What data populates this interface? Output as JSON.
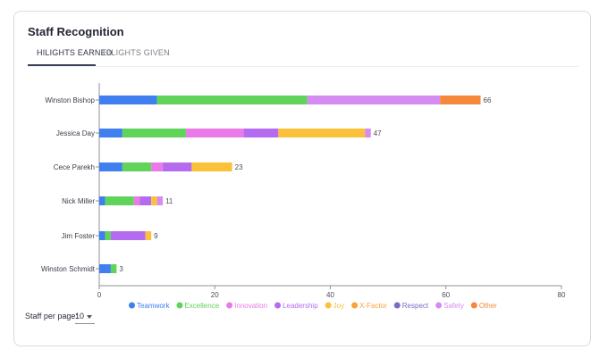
{
  "card": {
    "title": "Staff Recognition",
    "tabs": [
      {
        "label": "HILIGHTS EARNED",
        "active": true
      },
      {
        "label": "HILIGHTS GIVEN",
        "active": false
      }
    ]
  },
  "footer": {
    "per_page_label": "Staff per page:",
    "per_page_value": "10"
  },
  "colors": {
    "Teamwork": "#3f7ff0",
    "Excellence": "#5fd35a",
    "Innovation": "#e97ae8",
    "Leadership": "#b56bf0",
    "Joy": "#fbc13a",
    "X-Factor": "#f9a23a",
    "Respect": "#7b6cc4",
    "Safety": "#d58bef",
    "Other": "#f5883a"
  },
  "chart_data": {
    "type": "bar",
    "orientation": "horizontal",
    "stacked": true,
    "categories": [
      "Winston Bishop",
      "Jessica Day",
      "Cece Parekh",
      "Nick Miller",
      "Jim Foster",
      "Winston Schmidt"
    ],
    "totals": [
      66,
      47,
      23,
      11,
      9,
      3
    ],
    "series": [
      {
        "name": "Teamwork",
        "values": [
          10,
          4,
          4,
          1,
          1,
          2
        ]
      },
      {
        "name": "Excellence",
        "values": [
          26,
          11,
          5,
          5,
          1,
          1
        ]
      },
      {
        "name": "Innovation",
        "values": [
          0,
          10,
          2,
          1,
          0,
          0
        ]
      },
      {
        "name": "Leadership",
        "values": [
          0,
          6,
          5,
          2,
          6,
          0
        ]
      },
      {
        "name": "Joy",
        "values": [
          0,
          15,
          7,
          1,
          1,
          0
        ]
      },
      {
        "name": "X-Factor",
        "values": [
          0,
          0,
          0,
          0,
          0,
          0
        ]
      },
      {
        "name": "Respect",
        "values": [
          0,
          0,
          0,
          0,
          0,
          0
        ]
      },
      {
        "name": "Safety",
        "values": [
          23,
          1,
          0,
          1,
          0,
          0
        ]
      },
      {
        "name": "Other",
        "values": [
          7,
          0,
          0,
          0,
          0,
          0
        ]
      }
    ],
    "series_colors_order_note": "",
    "xlim": [
      0,
      80
    ],
    "xticks": [
      0,
      20,
      40,
      60,
      80
    ],
    "legend_position": "bottom",
    "grid": false
  }
}
